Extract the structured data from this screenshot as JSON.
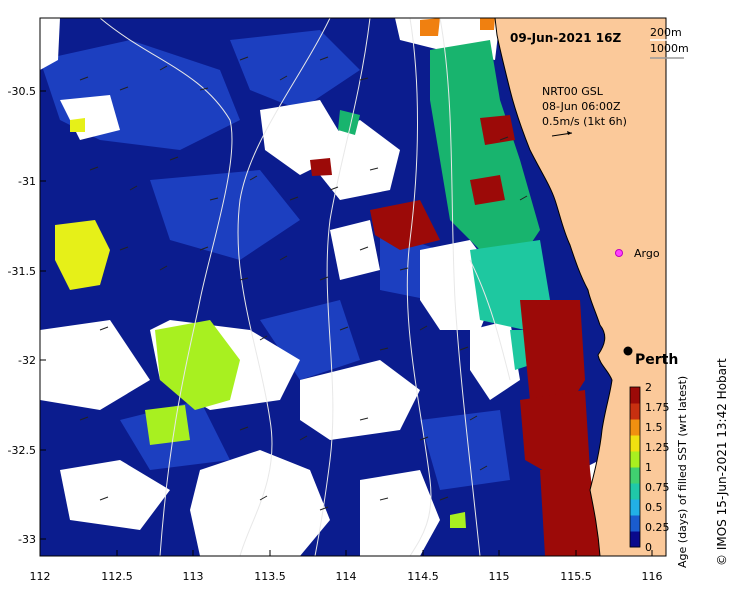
{
  "title": "09-Jun-2021 16Z",
  "depth_legend": {
    "line1": "200m",
    "line2": "1000m"
  },
  "current_legend": {
    "line1": "NRT00 GSL",
    "line2": "08-Jun 06:00Z",
    "line3": "0.5m/s (1kt 6h)"
  },
  "places": {
    "argo": "Argo",
    "perth": "Perth"
  },
  "credit": "© IMOS 15-Jun-2021 13:42 Hobart",
  "x_axis": {
    "ticks": [
      "112",
      "112.5",
      "113",
      "113.5",
      "114",
      "114.5",
      "115",
      "115.5",
      "116"
    ]
  },
  "y_axis": {
    "ticks": [
      "-30.5",
      "-31",
      "-31.5",
      "-32",
      "-32.5",
      "-33"
    ]
  },
  "colorbar": {
    "label": "Age (days) of filled SST (wrt latest)",
    "ticks": [
      "2",
      "1.75",
      "1.5",
      "1.25",
      "1",
      "0.75",
      "0.5",
      "0.25",
      "0"
    ],
    "colors": [
      "#0a0a8c",
      "#1a5ccf",
      "#22b0e6",
      "#20c8a8",
      "#40d070",
      "#a8f020",
      "#f0e010",
      "#f09010",
      "#c83010",
      "#9c0a08"
    ]
  },
  "colors": {
    "land": "#fbc99a",
    "ocean_old": "#0b1c8e",
    "ocean_mid": "#1c3fc0",
    "warm_dark_red": "#9c0a08",
    "green": "#18b46e",
    "teal": "#1ec8a0",
    "yellow_green": "#a8f020",
    "yellow": "#e6f018",
    "orange": "#f08010"
  }
}
